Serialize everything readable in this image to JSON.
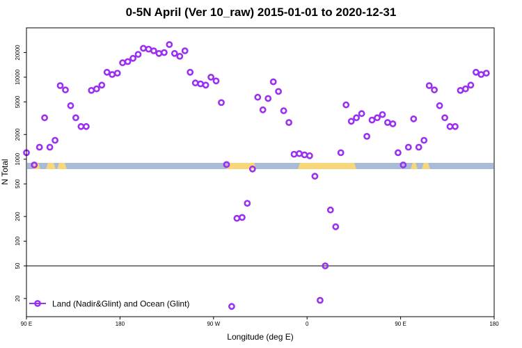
{
  "chart_data": {
    "type": "scatter",
    "title": "0-5N April (Ver 10_raw)   2015-01-01 to 2020-12-31",
    "xlabel": "Longitude (deg E)",
    "ylabel": "N Total",
    "y_scale": "log",
    "ylim": [
      12,
      40000
    ],
    "x_ticks": [
      "90 E",
      "180",
      "90 W",
      "0",
      "90 E",
      "180"
    ],
    "y_ticks": [
      20,
      50,
      100,
      200,
      500,
      1000,
      2000,
      5000,
      10000,
      20000
    ],
    "reference_line_y": 50,
    "grid": false,
    "legend_position": "bottom-left",
    "colors": {
      "series": "#9b30f0",
      "ocean": "#a8bcd8",
      "land": "#f7d77a",
      "reference": "#000000"
    },
    "series": [
      {
        "name": "Land (Nadir&Glint) and Ocean (Glint)",
        "points": [
          [
            0,
            1200
          ],
          [
            3,
            850
          ],
          [
            5,
            1400
          ],
          [
            7,
            3200
          ],
          [
            9,
            1400
          ],
          [
            11,
            1700
          ],
          [
            13,
            7900
          ],
          [
            15,
            7000
          ],
          [
            17,
            4500
          ],
          [
            19,
            3200
          ],
          [
            21,
            2500
          ],
          [
            23,
            2500
          ],
          [
            25,
            6900
          ],
          [
            27,
            7200
          ],
          [
            29,
            8000
          ],
          [
            31,
            11500
          ],
          [
            33,
            10800
          ],
          [
            35,
            11200
          ],
          [
            37,
            15000
          ],
          [
            39,
            15500
          ],
          [
            41,
            17000
          ],
          [
            43,
            19000
          ],
          [
            45,
            22500
          ],
          [
            47,
            22000
          ],
          [
            49,
            21000
          ],
          [
            51,
            19500
          ],
          [
            53,
            20000
          ],
          [
            55,
            25000
          ],
          [
            57,
            19500
          ],
          [
            59,
            18000
          ],
          [
            61,
            21000
          ],
          [
            63,
            11500
          ],
          [
            65,
            8500
          ],
          [
            67,
            8300
          ],
          [
            69,
            8000
          ],
          [
            71,
            10000
          ],
          [
            73,
            9000
          ],
          [
            75,
            4900
          ],
          [
            77,
            860
          ],
          [
            79,
            16
          ],
          [
            81,
            190
          ],
          [
            83,
            195
          ],
          [
            85,
            290
          ],
          [
            87,
            760
          ],
          [
            89,
            5700
          ],
          [
            91,
            4000
          ],
          [
            93,
            5500
          ],
          [
            95,
            8800
          ],
          [
            97,
            6700
          ],
          [
            99,
            3900
          ],
          [
            101,
            2800
          ],
          [
            103,
            1150
          ],
          [
            105,
            1170
          ],
          [
            107,
            1130
          ],
          [
            109,
            1100
          ],
          [
            111,
            620
          ],
          [
            113,
            19
          ],
          [
            115,
            50
          ],
          [
            117,
            240
          ],
          [
            119,
            150
          ],
          [
            121,
            1200
          ],
          [
            123,
            4600
          ],
          [
            125,
            2900
          ],
          [
            127,
            3200
          ],
          [
            129,
            3600
          ],
          [
            131,
            1900
          ],
          [
            133,
            3000
          ],
          [
            135,
            3200
          ],
          [
            137,
            3500
          ],
          [
            139,
            2800
          ],
          [
            141,
            2700
          ],
          [
            143,
            1200
          ],
          [
            145,
            850
          ],
          [
            147,
            1400
          ],
          [
            149,
            3100
          ],
          [
            151,
            1400
          ],
          [
            153,
            1700
          ],
          [
            155,
            7900
          ],
          [
            157,
            7000
          ],
          [
            159,
            4500
          ],
          [
            161,
            3200
          ],
          [
            163,
            2500
          ],
          [
            165,
            2500
          ],
          [
            167,
            6900
          ],
          [
            169,
            7200
          ],
          [
            171,
            8000
          ],
          [
            173,
            11500
          ],
          [
            175,
            10800
          ],
          [
            177,
            11200
          ]
        ]
      }
    ],
    "x_range": [
      0,
      180
    ]
  }
}
